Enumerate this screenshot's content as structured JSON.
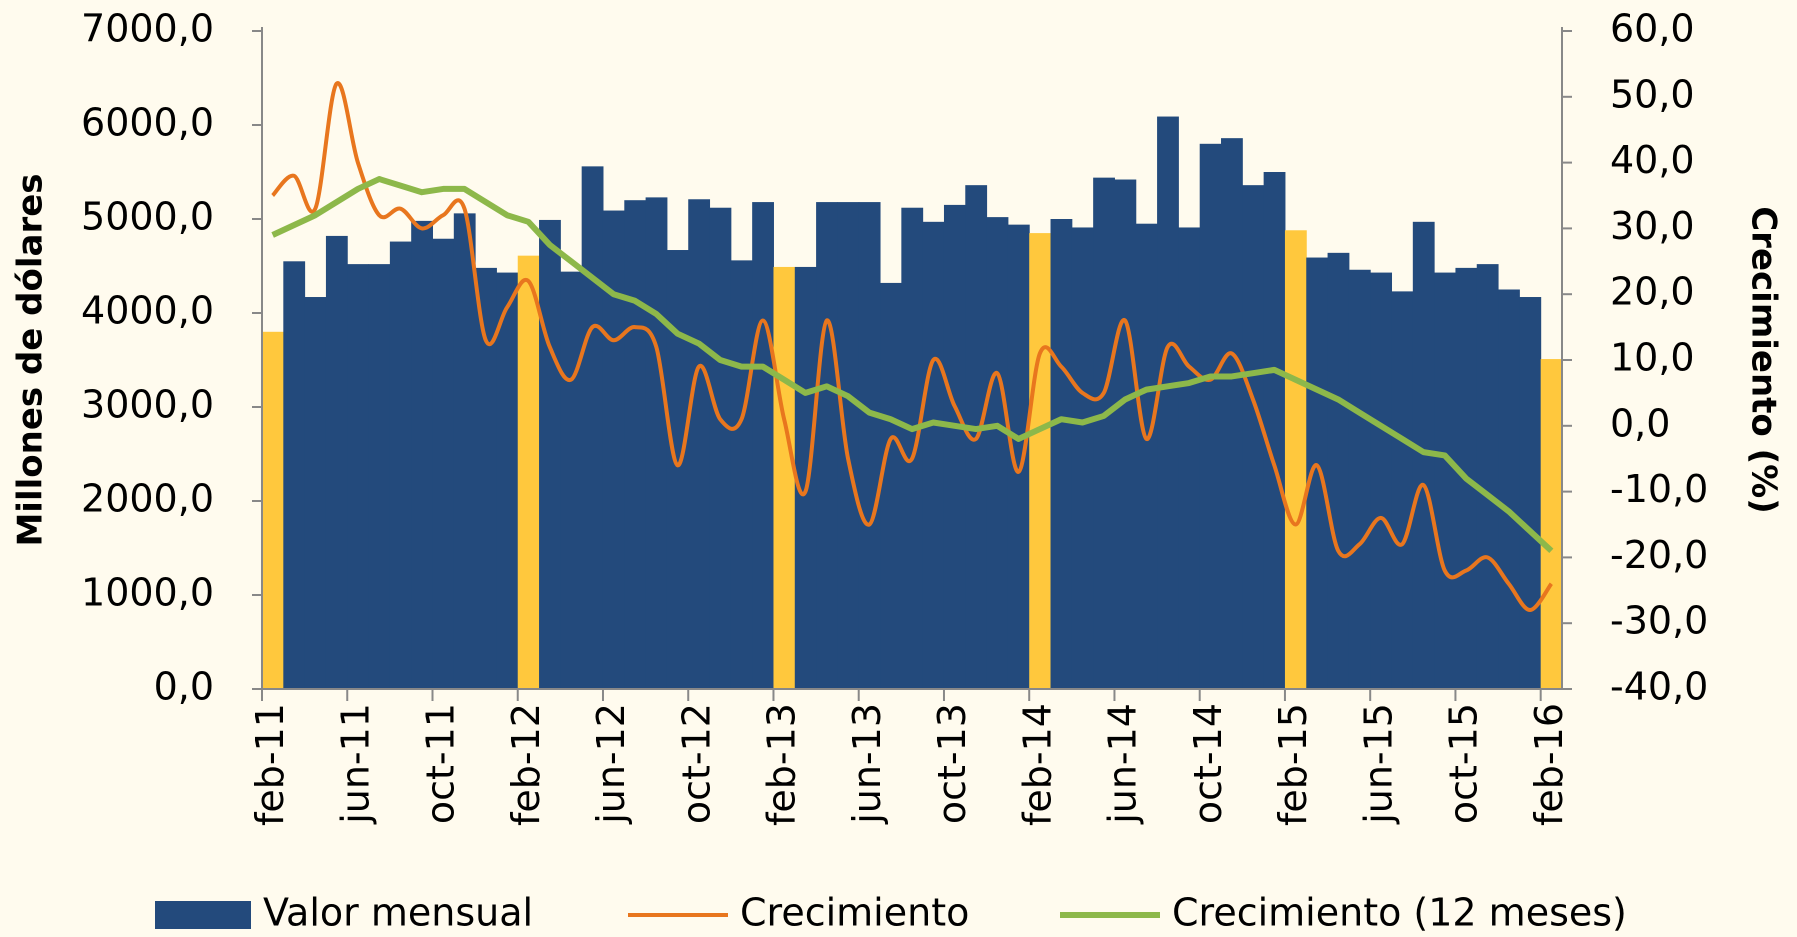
{
  "chart_data": {
    "type": "bar-line",
    "y_title": "Millones de dólares",
    "y2_title": "Crecimiento (%)",
    "categories": [
      "feb-11",
      null,
      null,
      null,
      "jun-11",
      null,
      null,
      null,
      "oct-11",
      null,
      null,
      null,
      "feb-12",
      null,
      null,
      null,
      "jun-12",
      null,
      null,
      null,
      "oct-12",
      null,
      null,
      null,
      "feb-13",
      null,
      null,
      null,
      "jun-13",
      null,
      null,
      null,
      "oct-13",
      null,
      null,
      null,
      "feb-14",
      null,
      null,
      null,
      "jun-14",
      null,
      null,
      null,
      "oct-14",
      null,
      null,
      null,
      "feb-15",
      null,
      null,
      null,
      "jun-15",
      null,
      null,
      null,
      "oct-15",
      null,
      null,
      null,
      "feb-16"
    ],
    "series": [
      {
        "name": "Valor mensual",
        "type": "bar",
        "color": "#234a7c",
        "highlight_color": "#ffc83d",
        "highlight_indices": [
          0,
          12,
          24,
          36,
          48,
          60
        ],
        "values": [
          3800,
          4550,
          4170,
          4820,
          4520,
          4520,
          4760,
          4980,
          4790,
          5060,
          4480,
          4430,
          4610,
          4990,
          4440,
          5560,
          5090,
          5200,
          5230,
          4670,
          5210,
          5120,
          4560,
          5180,
          4490,
          4490,
          5180,
          5180,
          5180,
          4320,
          5120,
          4970,
          5150,
          5360,
          5020,
          4940,
          4850,
          5000,
          4910,
          5440,
          5420,
          4950,
          6090,
          4910,
          5800,
          5860,
          5360,
          5500,
          4880,
          4590,
          4640,
          4460,
          4430,
          4230,
          4970,
          4430,
          4480,
          4520,
          4250,
          4170,
          3510
        ]
      },
      {
        "name": "Crecimiento",
        "type": "line",
        "axis": "y2",
        "color": "#e8761e",
        "smooth": true,
        "values": [
          35,
          38,
          33,
          52,
          40,
          32,
          33,
          30,
          32,
          33,
          13,
          18,
          22,
          12,
          7,
          15,
          13,
          15,
          12,
          -6,
          9,
          1,
          1,
          16,
          1,
          -10,
          16,
          -5,
          -15,
          -2,
          -5,
          10,
          3,
          -2,
          8,
          -7,
          11,
          9,
          5,
          5,
          16,
          -2,
          12,
          9,
          7,
          11,
          4,
          -6,
          -15,
          -6,
          -19,
          -18,
          -14,
          -18,
          -9,
          -22,
          -22,
          -20,
          -24,
          -28,
          -24
        ]
      },
      {
        "name": "Crecimiento (12 meses)",
        "type": "line",
        "axis": "y2",
        "color": "#8db84a",
        "smooth": false,
        "values": [
          29,
          30.5,
          32,
          34,
          36,
          37.5,
          36.5,
          35.5,
          36,
          36,
          34,
          32,
          31,
          27.5,
          25,
          22.5,
          20,
          19,
          17,
          14,
          12.5,
          10,
          9,
          9,
          7,
          5,
          6,
          4.5,
          2,
          1,
          -0.5,
          0.5,
          0,
          -0.5,
          0,
          -2,
          -0.5,
          1,
          0.5,
          1.5,
          4,
          5.5,
          6,
          6.5,
          7.5,
          7.5,
          8,
          8.5,
          7,
          5.5,
          4,
          2,
          0,
          -2,
          -4,
          -4.5,
          -8,
          -10.5,
          -13,
          -16,
          -19
        ]
      }
    ],
    "ylim": [
      0,
      7000
    ],
    "yticks": [
      {
        "value": 0,
        "label": "0,0"
      },
      {
        "value": 1000,
        "label": "1000,0"
      },
      {
        "value": 2000,
        "label": "2000,0"
      },
      {
        "value": 3000,
        "label": "3000,0"
      },
      {
        "value": 4000,
        "label": "4000,0"
      },
      {
        "value": 5000,
        "label": "5000,0"
      },
      {
        "value": 6000,
        "label": "6000,0"
      },
      {
        "value": 7000,
        "label": "7000,0"
      }
    ],
    "y2lim": [
      -40,
      60
    ],
    "y2ticks": [
      {
        "value": -40,
        "label": "-40,0"
      },
      {
        "value": -30,
        "label": "-30,0"
      },
      {
        "value": -20,
        "label": "-20,0"
      },
      {
        "value": -10,
        "label": "-10,0"
      },
      {
        "value": 0,
        "label": "0,0"
      },
      {
        "value": 10,
        "label": "10,0"
      },
      {
        "value": 20,
        "label": "20,0"
      },
      {
        "value": 30,
        "label": "30,0"
      },
      {
        "value": 40,
        "label": "40,0"
      },
      {
        "value": 50,
        "label": "50,0"
      },
      {
        "value": 60,
        "label": "60,0"
      }
    ],
    "y2_color": "#f7c84a",
    "legend": "bottom"
  }
}
